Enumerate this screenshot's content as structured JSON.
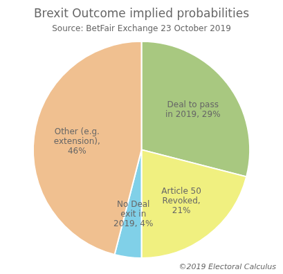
{
  "chart_data": {
    "type": "pie",
    "title": "Brexit Outcome implied probabilities",
    "subtitle": "Source: BetFair Exchange 23 October 2019",
    "annotations": [
      "©2019 Electoral Calculus"
    ],
    "categories": [
      "Deal to pass\nin 2019, 29%",
      "Article 50\nRevoked,\n21%",
      "No Deal\nexit in\n2019, 4%",
      "Other (e.g.\nextension),\n46%"
    ],
    "values": [
      29,
      21,
      4,
      46
    ],
    "colors": [
      "#a8c880",
      "#f0f080",
      "#80d0e8",
      "#f0c090"
    ]
  }
}
